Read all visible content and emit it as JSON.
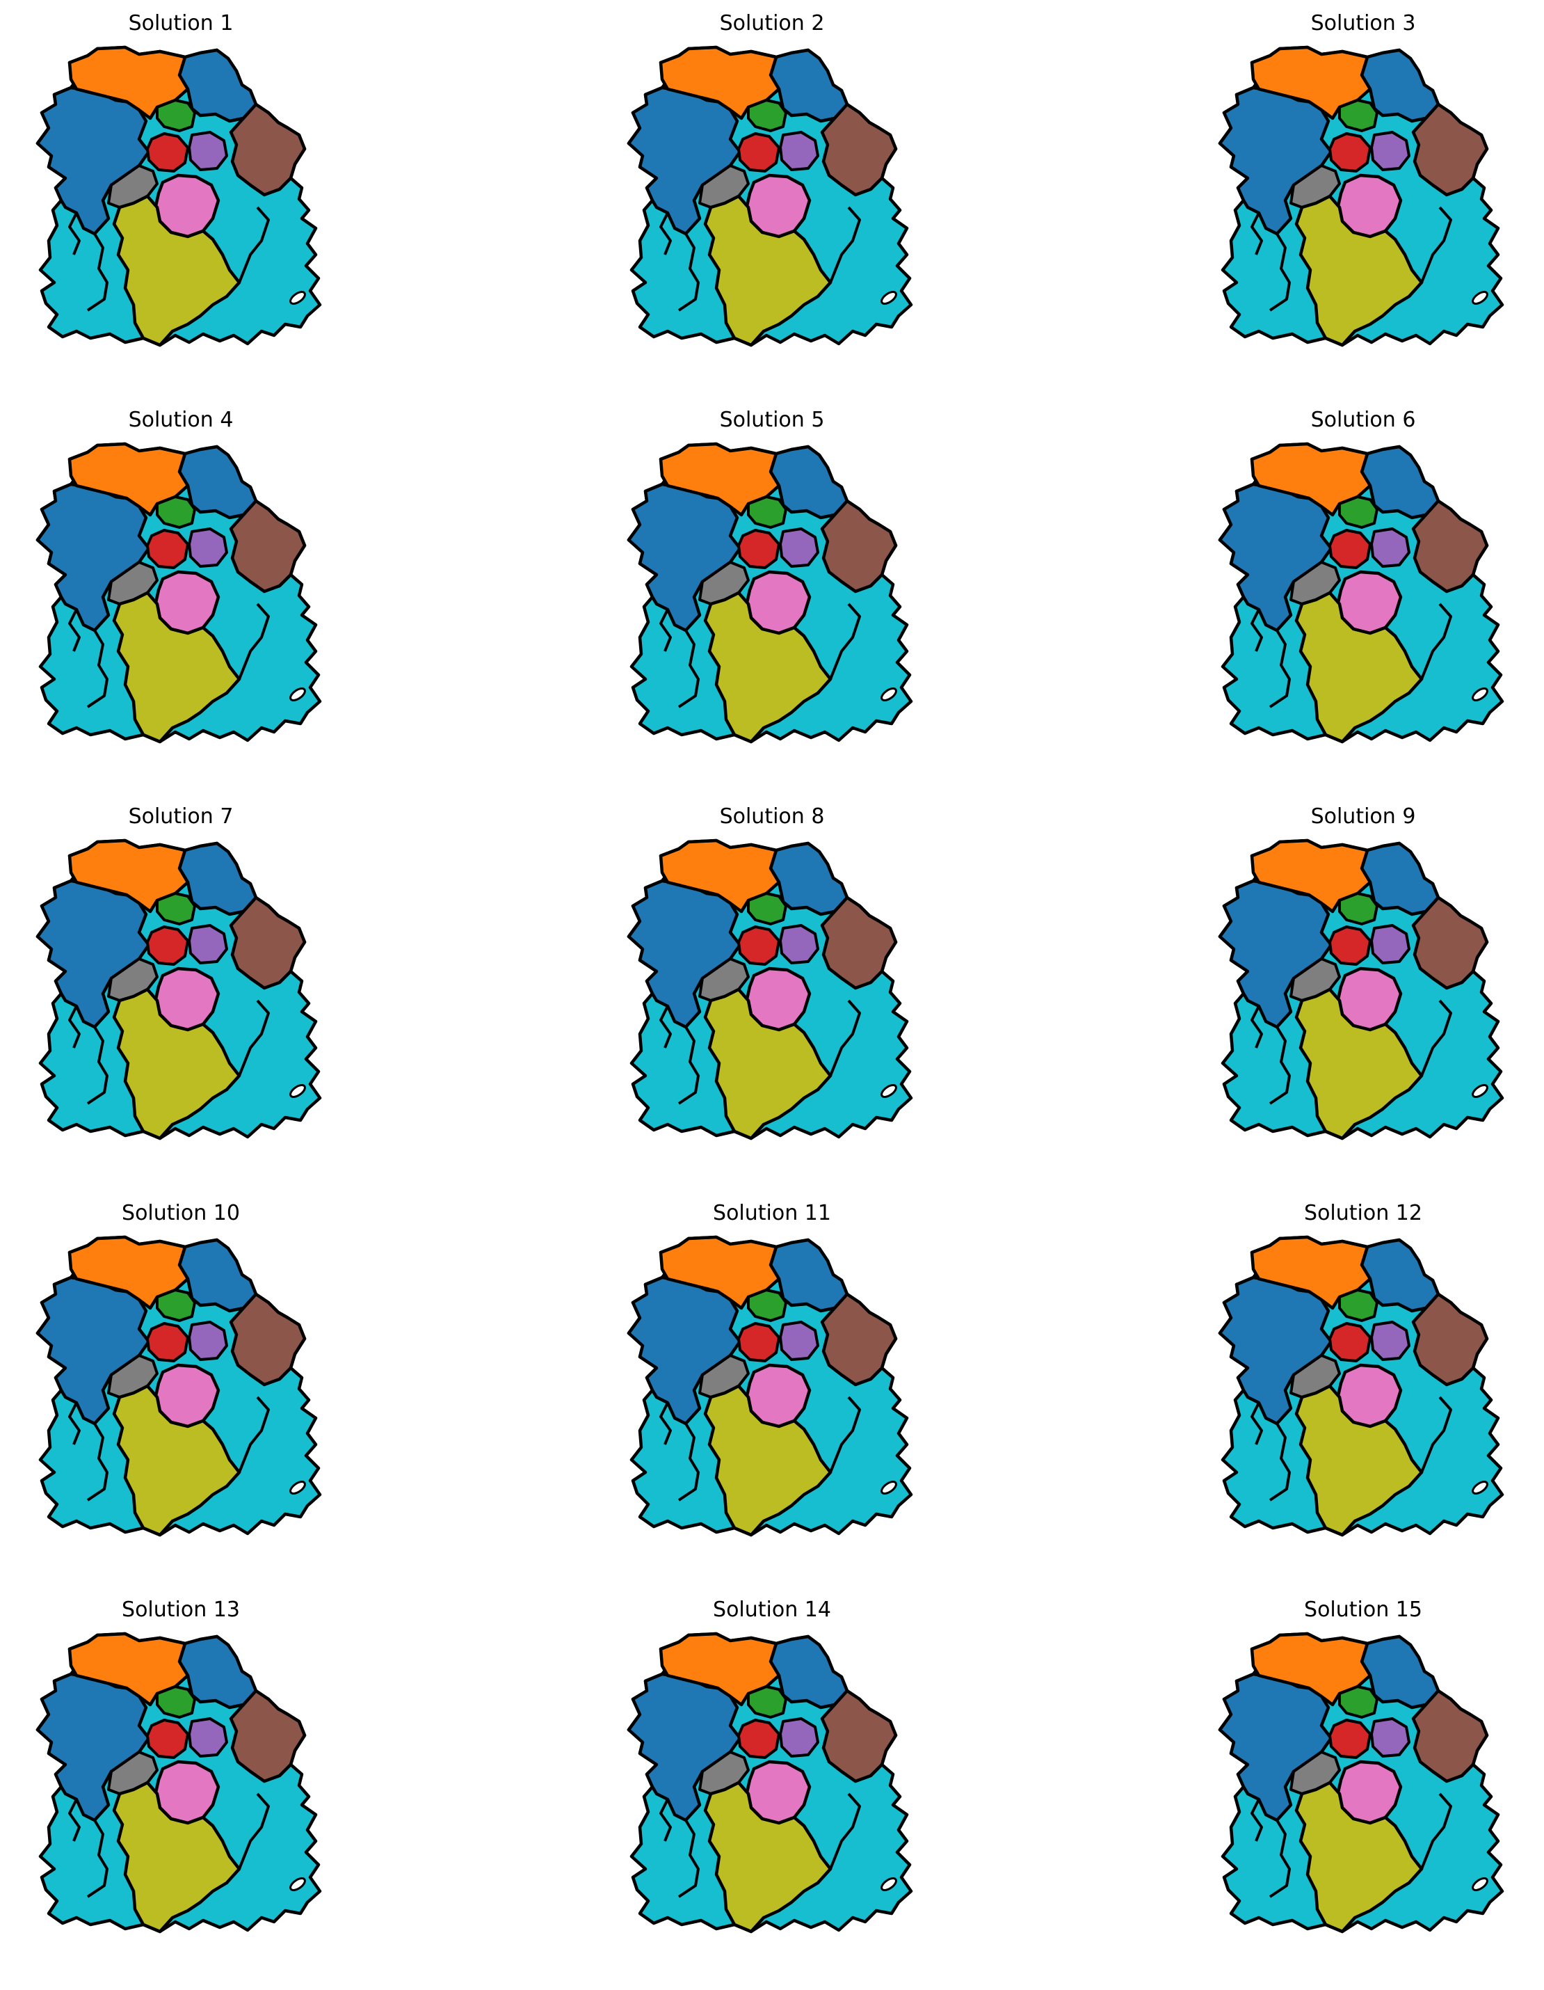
{
  "figure": {
    "grid": {
      "rows": 5,
      "cols": 3
    },
    "district_colors": {
      "orange": "#ff7f0e",
      "blue": "#1f77b4",
      "green": "#2ca02c",
      "red": "#d62728",
      "purple": "#9467bd",
      "brown": "#8c564b",
      "gray": "#7f7f7f",
      "pink": "#e377c2",
      "olive": "#bcbd22",
      "cyan": "#17becf"
    },
    "boundary_color": "#000000",
    "panels": [
      {
        "title": "Solution 1"
      },
      {
        "title": "Solution 2"
      },
      {
        "title": "Solution 3"
      },
      {
        "title": "Solution 4"
      },
      {
        "title": "Solution 5"
      },
      {
        "title": "Solution 6"
      },
      {
        "title": "Solution 7"
      },
      {
        "title": "Solution 8"
      },
      {
        "title": "Solution 9"
      },
      {
        "title": "Solution 10"
      },
      {
        "title": "Solution 11"
      },
      {
        "title": "Solution 12"
      },
      {
        "title": "Solution 13"
      },
      {
        "title": "Solution 14"
      },
      {
        "title": "Solution 15"
      }
    ]
  }
}
